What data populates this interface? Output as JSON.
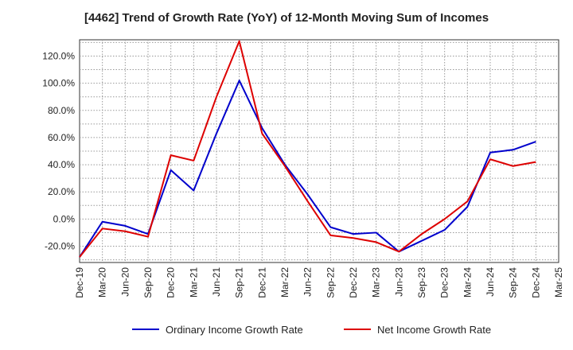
{
  "chart_data": {
    "type": "line",
    "title": "[4462]  Trend of Growth Rate (YoY) of 12-Month Moving Sum of Incomes",
    "xlabel": "",
    "ylabel": "",
    "ylim": [
      -32,
      132
    ],
    "y_ticks": [
      -20,
      0,
      20,
      40,
      60,
      80,
      100,
      120
    ],
    "y_tick_labels": [
      "-20.0%",
      "0.0%",
      "20.0%",
      "40.0%",
      "60.0%",
      "80.0%",
      "100.0%",
      "120.0%"
    ],
    "categories": [
      "Dec-19",
      "Mar-20",
      "Jun-20",
      "Sep-20",
      "Dec-20",
      "Mar-21",
      "Jun-21",
      "Sep-21",
      "Dec-21",
      "Mar-22",
      "Jun-22",
      "Sep-22",
      "Dec-22",
      "Mar-23",
      "Jun-23",
      "Sep-23",
      "Dec-23",
      "Mar-24",
      "Jun-24",
      "Sep-24",
      "Dec-24",
      "Mar-25"
    ],
    "grid": true,
    "legend_position": "bottom",
    "series": [
      {
        "name": "Ordinary Income Growth Rate",
        "color": "#0000cc",
        "values": [
          -28,
          -2,
          -5,
          -11,
          36,
          21,
          63,
          102,
          67,
          40,
          18,
          -6,
          -11,
          -10,
          -24,
          -16,
          -8,
          9,
          49,
          51,
          57,
          null
        ]
      },
      {
        "name": "Net Income Growth Rate",
        "color": "#dd0000",
        "values": [
          -28,
          -7,
          -9,
          -13,
          47,
          43,
          90,
          131,
          63,
          39,
          13,
          -12,
          -14,
          -17,
          -24,
          -11,
          0,
          13,
          44,
          39,
          42,
          null
        ]
      }
    ]
  }
}
